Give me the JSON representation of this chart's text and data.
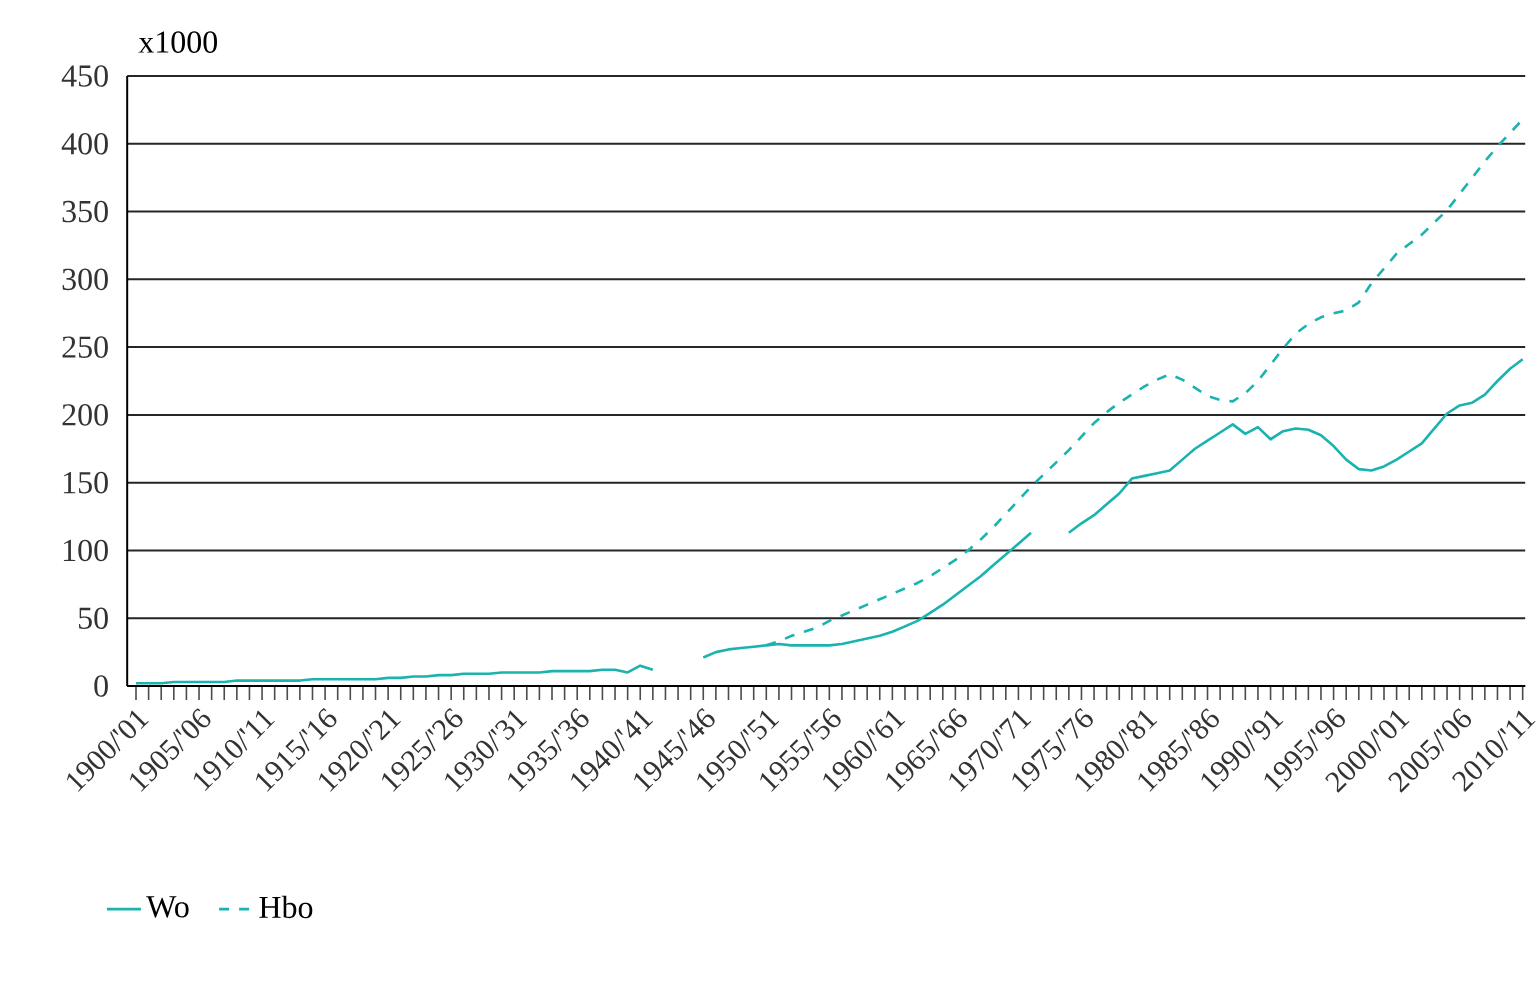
{
  "chart_data": {
    "type": "line",
    "ylabel": "x1000",
    "categories": [
      "1900/'01",
      null,
      null,
      null,
      null,
      "1905/'06",
      null,
      null,
      null,
      null,
      "1910/'11",
      null,
      null,
      null,
      null,
      "1915/'16",
      null,
      null,
      null,
      null,
      "1920/'21",
      null,
      null,
      null,
      null,
      "1925/'26",
      null,
      null,
      null,
      null,
      "1930/'31",
      null,
      null,
      null,
      null,
      "1935/'36",
      null,
      null,
      null,
      null,
      "1940/'41",
      null,
      null,
      null,
      null,
      "1945/'46",
      null,
      null,
      null,
      null,
      "1950/'51",
      null,
      null,
      null,
      null,
      "1955/'56",
      null,
      null,
      null,
      null,
      "1960/'61",
      null,
      null,
      null,
      null,
      "1965/'66",
      null,
      null,
      null,
      null,
      "1970/'71",
      null,
      null,
      null,
      null,
      "1975/'76",
      null,
      null,
      null,
      null,
      "1980/'81",
      null,
      null,
      null,
      null,
      "1985/'86",
      null,
      null,
      null,
      null,
      "1990/'91",
      null,
      null,
      null,
      null,
      "1995/'96",
      null,
      null,
      null,
      null,
      "2000/'01",
      null,
      null,
      null,
      null,
      "2005/'06",
      null,
      null,
      null,
      null,
      "2010/'11"
    ],
    "series": [
      {
        "name": "Wo",
        "color": "#1ab3b0",
        "line_style": "solid",
        "values": [
          2,
          2,
          2,
          3,
          3,
          3,
          3,
          3,
          4,
          4,
          4,
          4,
          4,
          4,
          5,
          5,
          5,
          5,
          5,
          5,
          6,
          6,
          7,
          7,
          8,
          8,
          9,
          9,
          9,
          10,
          10,
          10,
          10,
          11,
          11,
          11,
          11,
          12,
          12,
          10,
          15,
          12,
          null,
          null,
          null,
          21,
          25,
          27,
          28,
          29,
          30,
          31,
          30,
          30,
          30,
          30,
          31,
          33,
          35,
          37,
          40,
          44,
          48,
          54,
          60,
          67,
          74,
          81,
          89,
          97,
          105,
          113,
          null,
          null,
          113,
          120,
          126,
          134,
          142,
          153,
          155,
          157,
          159,
          167,
          175,
          181,
          187,
          193,
          186,
          191,
          182,
          188,
          190,
          189,
          185,
          177,
          167,
          160,
          159,
          162,
          167,
          173,
          179,
          190,
          201,
          207,
          209,
          215,
          225,
          234,
          241
        ]
      },
      {
        "name": "Hbo",
        "color": "#1ab3b0",
        "line_style": "dashed",
        "values": [
          null,
          null,
          null,
          null,
          null,
          null,
          null,
          null,
          null,
          null,
          null,
          null,
          null,
          null,
          null,
          null,
          null,
          null,
          null,
          null,
          null,
          null,
          null,
          null,
          null,
          null,
          null,
          null,
          null,
          null,
          null,
          null,
          null,
          null,
          null,
          null,
          null,
          null,
          null,
          null,
          null,
          null,
          null,
          null,
          null,
          null,
          null,
          null,
          null,
          null,
          30,
          33,
          37,
          40,
          43,
          48,
          52,
          56,
          60,
          64,
          68,
          72,
          76,
          81,
          87,
          93,
          100,
          108,
          117,
          127,
          137,
          147,
          156,
          165,
          174,
          184,
          194,
          202,
          209,
          215,
          221,
          226,
          230,
          226,
          220,
          214,
          211,
          210,
          216,
          225,
          237,
          249,
          260,
          267,
          272,
          275,
          277,
          283,
          297,
          308,
          319,
          326,
          333,
          342,
          351,
          363,
          375,
          387,
          398,
          408,
          418
        ]
      }
    ],
    "ylim": [
      0,
      450
    ],
    "yticks": [
      0,
      50,
      100,
      150,
      200,
      250,
      300,
      350,
      400,
      450
    ],
    "grid": "y",
    "legend": "bottom left"
  }
}
